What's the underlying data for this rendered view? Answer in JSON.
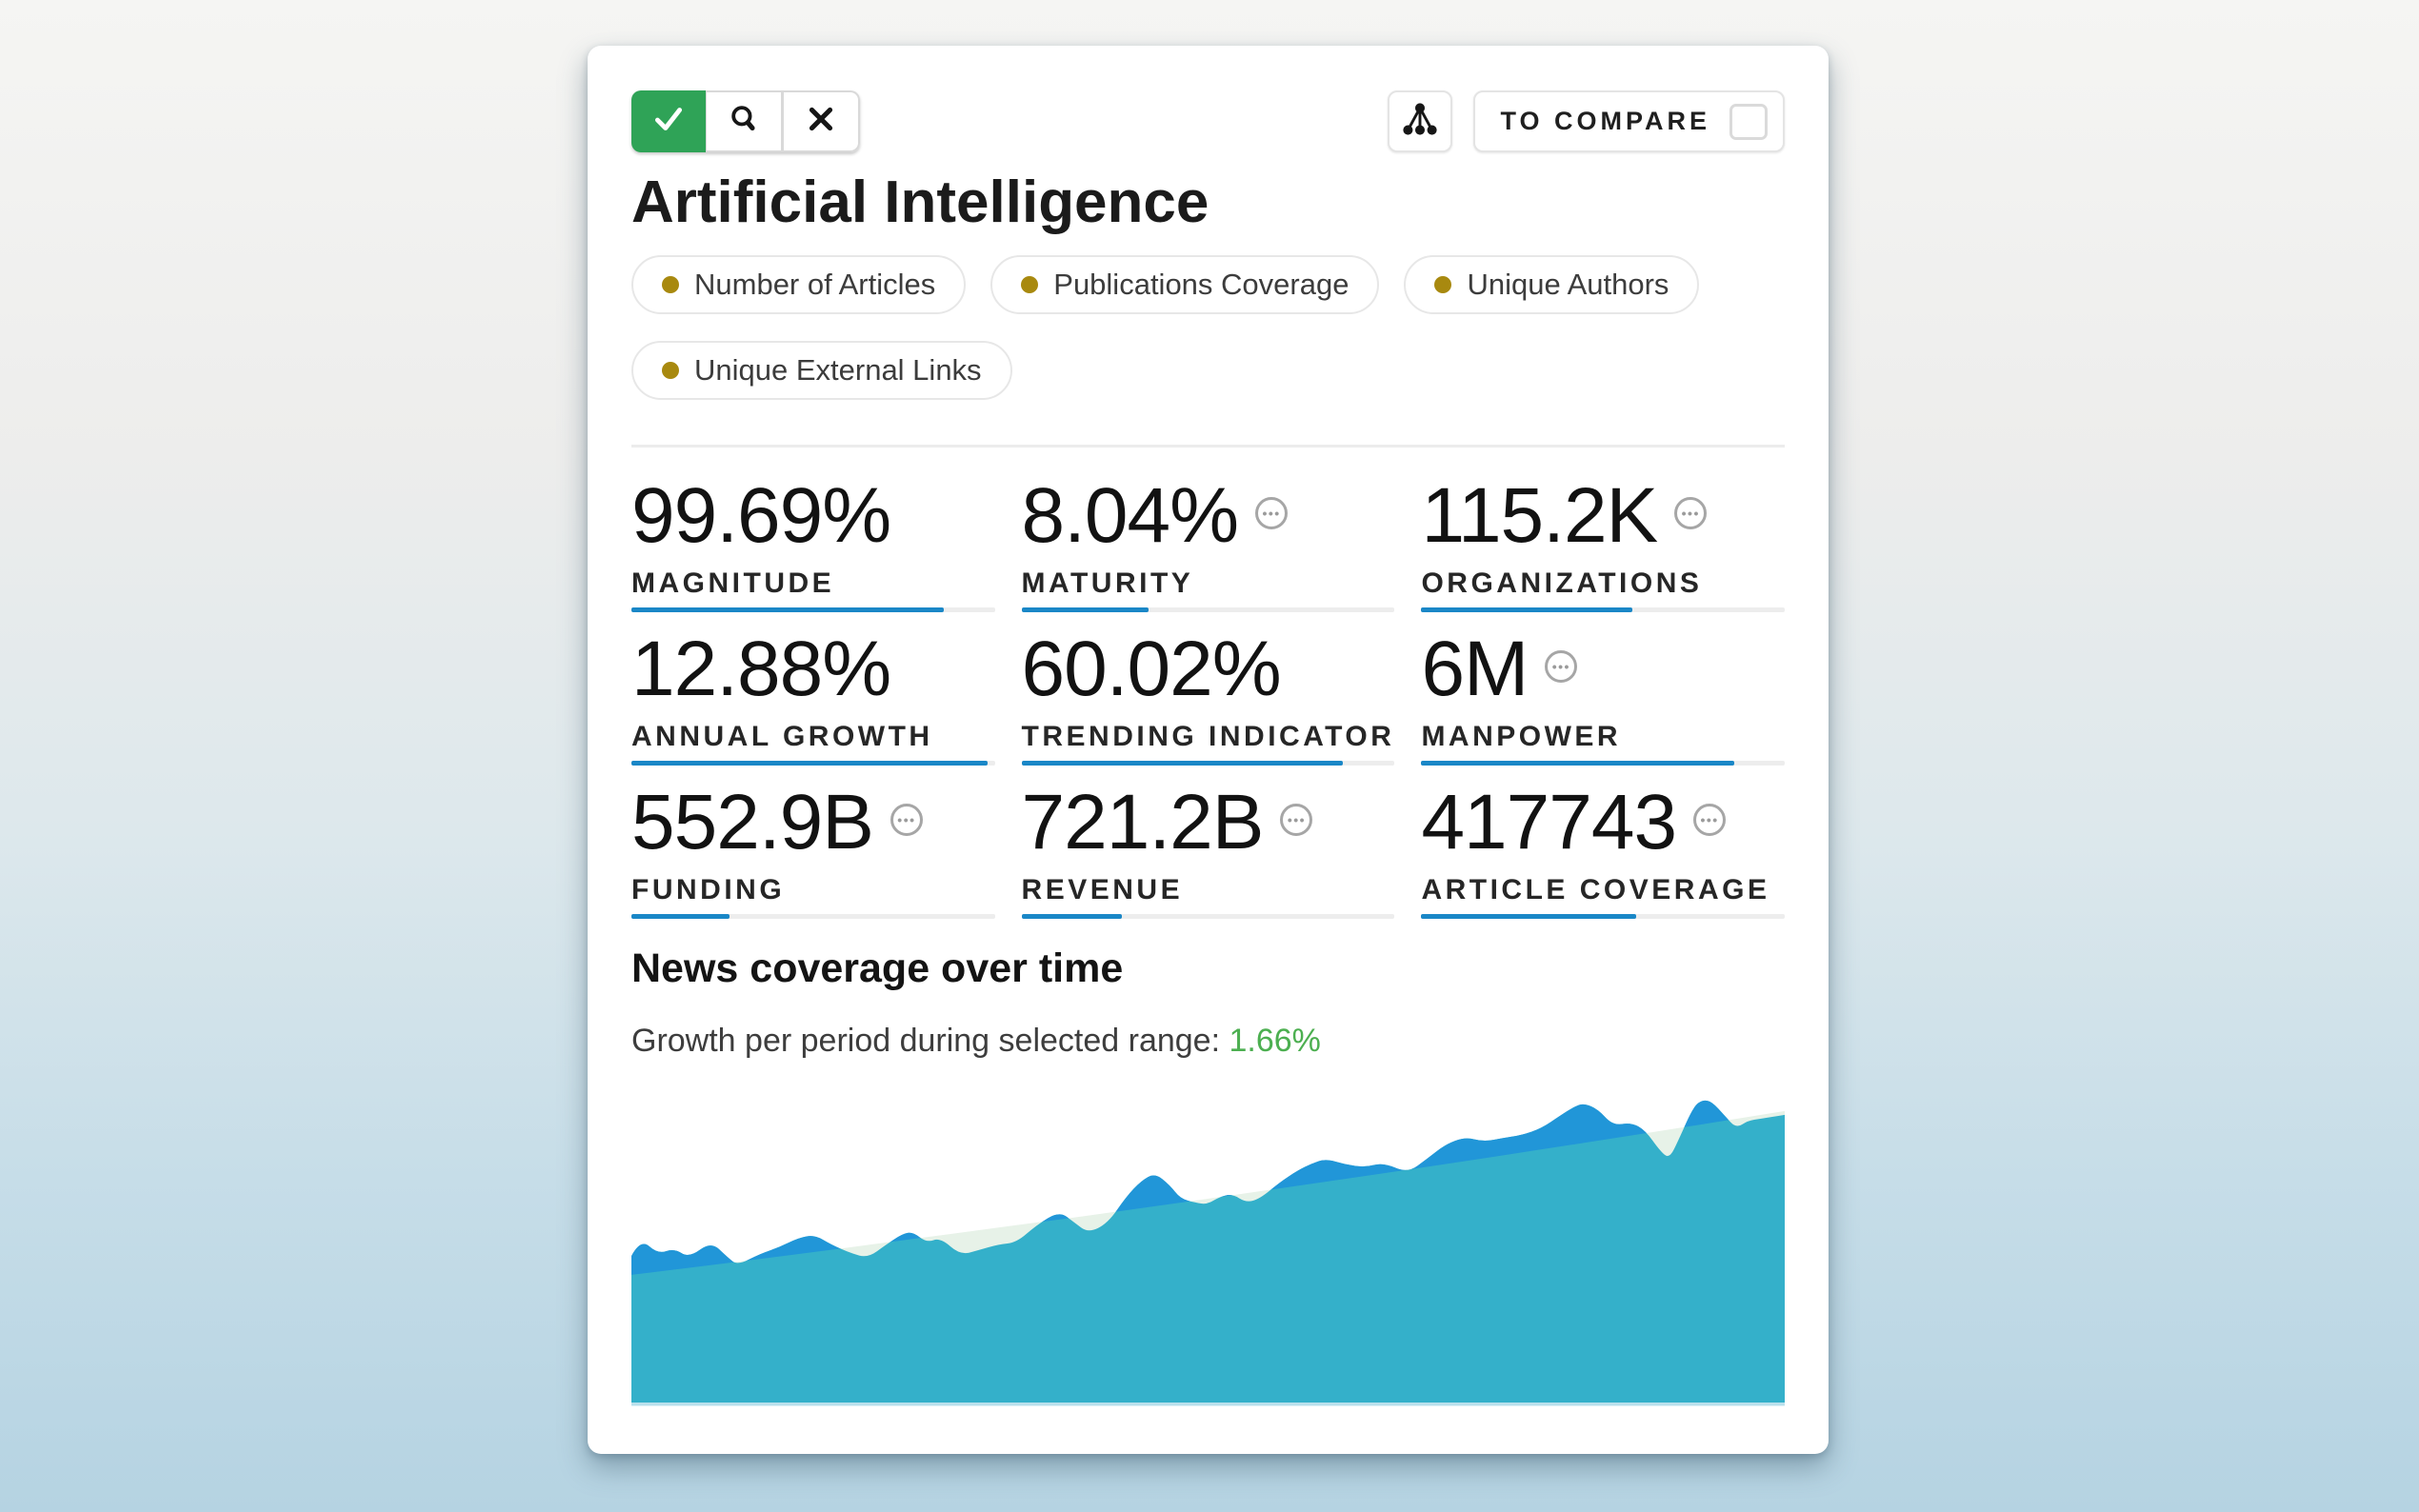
{
  "toolbar": {
    "buttons": [
      {
        "name": "confirm",
        "icon": "check-icon",
        "active": true
      },
      {
        "name": "search",
        "icon": "search-icon"
      },
      {
        "name": "close",
        "icon": "close-icon"
      }
    ],
    "hierarchy_button": {
      "icon": "tree-hierarchy-icon"
    },
    "compare": {
      "label": "TO COMPARE",
      "checked": false
    }
  },
  "header": {
    "title": "Artificial Intelligence"
  },
  "tags": [
    {
      "label": "Number of Articles"
    },
    {
      "label": "Publications Coverage"
    },
    {
      "label": "Unique Authors"
    },
    {
      "label": "Unique External Links"
    }
  ],
  "metrics": [
    {
      "value": "99.69%",
      "label": "MAGNITUDE",
      "bar_pct": 86,
      "info_icon": false
    },
    {
      "value": "8.04%",
      "label": "MATURITY",
      "bar_pct": 34,
      "info_icon": true
    },
    {
      "value": "115.2K",
      "label": "ORGANIZATIONS",
      "bar_pct": 58,
      "info_icon": true
    },
    {
      "value": "12.88%",
      "label": "ANNUAL GROWTH",
      "bar_pct": 98,
      "info_icon": false
    },
    {
      "value": "60.02%",
      "label": "TRENDING INDICATOR",
      "bar_pct": 86,
      "info_icon": false
    },
    {
      "value": "6M",
      "label": "MANPOWER",
      "bar_pct": 86,
      "info_icon": true
    },
    {
      "value": "552.9B",
      "label": "FUNDING",
      "bar_pct": 27,
      "info_icon": true
    },
    {
      "value": "721.2B",
      "label": "REVENUE",
      "bar_pct": 27,
      "info_icon": true
    },
    {
      "value": "417743",
      "label": "ARTICLE COVERAGE",
      "bar_pct": 59,
      "info_icon": true
    }
  ],
  "news_section": {
    "title": "News coverage over time",
    "growth_label": "Growth per period during selected range:",
    "growth_value": "1.66%"
  },
  "colors": {
    "confirm_green": "#2fa357",
    "tag_dot": "#a8890f",
    "accent_blue": "#1a87c7",
    "growth_green": "#4caf50",
    "chart_blue": "#2196d8",
    "chart_teal": "#34b0ca",
    "chart_trend": "#e7f2e8",
    "chart_baseline": "#b9e0ec"
  },
  "chart_data": {
    "type": "area",
    "title": "News coverage over time",
    "xlabel": "",
    "ylabel": "",
    "grid": false,
    "legend": false,
    "x_range_pct": [
      0,
      100
    ],
    "y_range_index": [
      0,
      100
    ],
    "series": [
      {
        "name": "news-coverage",
        "role": "raw-data",
        "points": [
          [
            0,
            45.8
          ],
          [
            0.8,
            51.2
          ],
          [
            2.3,
            46.4
          ],
          [
            3.7,
            48.2
          ],
          [
            5.0,
            45.2
          ],
          [
            6.9,
            50.3
          ],
          [
            8.3,
            45.5
          ],
          [
            9.2,
            42.9
          ],
          [
            11.1,
            46.4
          ],
          [
            12.8,
            48.5
          ],
          [
            14.5,
            51.5
          ],
          [
            15.9,
            52.4
          ],
          [
            17.3,
            49.4
          ],
          [
            19.0,
            46.7
          ],
          [
            20.5,
            45.2
          ],
          [
            22.1,
            49.4
          ],
          [
            23.5,
            52.7
          ],
          [
            24.4,
            53.3
          ],
          [
            25.6,
            50.0
          ],
          [
            26.8,
            51.5
          ],
          [
            28.5,
            46.1
          ],
          [
            30.1,
            47.6
          ],
          [
            31.8,
            49.4
          ],
          [
            33.4,
            50.0
          ],
          [
            35.1,
            55.4
          ],
          [
            37.1,
            59.8
          ],
          [
            38.4,
            56.3
          ],
          [
            39.6,
            53.0
          ],
          [
            41.3,
            56.0
          ],
          [
            42.9,
            64.3
          ],
          [
            44.2,
            69.3
          ],
          [
            45.4,
            71.7
          ],
          [
            46.7,
            67.9
          ],
          [
            47.6,
            63.7
          ],
          [
            48.9,
            62.5
          ],
          [
            49.9,
            61.9
          ],
          [
            51.0,
            64.3
          ],
          [
            52.1,
            65.2
          ],
          [
            53.3,
            62.5
          ],
          [
            54.5,
            63.7
          ],
          [
            56.2,
            68.8
          ],
          [
            57.8,
            72.6
          ],
          [
            59.0,
            74.7
          ],
          [
            60.2,
            76.2
          ],
          [
            61.9,
            74.4
          ],
          [
            63.6,
            73.5
          ],
          [
            65.2,
            75.0
          ],
          [
            67.3,
            71.7
          ],
          [
            69.0,
            76.2
          ],
          [
            70.6,
            80.7
          ],
          [
            72.3,
            83.0
          ],
          [
            73.9,
            81.5
          ],
          [
            75.6,
            82.7
          ],
          [
            77.2,
            83.6
          ],
          [
            78.9,
            85.7
          ],
          [
            80.5,
            89.6
          ],
          [
            81.8,
            92.6
          ],
          [
            82.6,
            93.5
          ],
          [
            83.8,
            91.7
          ],
          [
            85.1,
            86.6
          ],
          [
            86.7,
            87.5
          ],
          [
            87.9,
            85.1
          ],
          [
            89.2,
            78.6
          ],
          [
            90.0,
            76.2
          ],
          [
            90.8,
            82.1
          ],
          [
            92.1,
            92.6
          ],
          [
            92.9,
            94.6
          ],
          [
            93.7,
            94.0
          ],
          [
            94.8,
            89.6
          ],
          [
            95.8,
            85.7
          ],
          [
            96.8,
            88.1
          ],
          [
            97.9,
            88.7
          ],
          [
            98.9,
            89.3
          ],
          [
            100,
            89.9
          ]
        ]
      },
      {
        "name": "smoothed-trend",
        "role": "trend",
        "points": [
          [
            0,
            39.9
          ],
          [
            10,
            44.3
          ],
          [
            20,
            49.0
          ],
          [
            30,
            53.8
          ],
          [
            40,
            58.6
          ],
          [
            50,
            63.7
          ],
          [
            60,
            68.9
          ],
          [
            70,
            74.2
          ],
          [
            80,
            79.7
          ],
          [
            90,
            85.3
          ],
          [
            100,
            91.1
          ]
        ]
      }
    ]
  }
}
